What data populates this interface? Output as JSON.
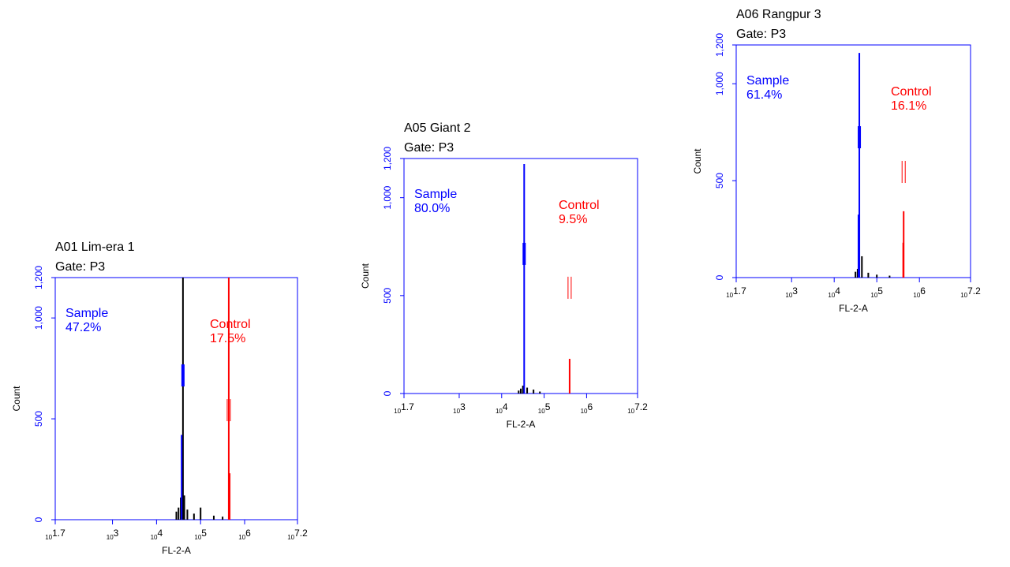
{
  "chart_data": [
    {
      "type": "histogram",
      "title": "A01 Lim-era 1",
      "subtitle": "Gate: P3",
      "xlabel": "FL-2-A",
      "ylabel": "Count",
      "xscale": "log",
      "tick_base": "10",
      "xlim": [
        1.7,
        7.2
      ],
      "xticks": [
        1.7,
        3,
        4,
        5,
        6,
        7.2
      ],
      "ylim": [
        0,
        1200
      ],
      "yticks": [
        0,
        500,
        {
          "value": 1000,
          "label": "1,000"
        },
        {
          "value": 1200,
          "label": "1,200"
        }
      ],
      "axis_color": "#0000ff",
      "series": [
        {
          "color": "#000000",
          "x": [
            4.45,
            4.5,
            4.55,
            4.6,
            4.63,
            4.7,
            4.85,
            5.0,
            5.3,
            5.5
          ],
          "values": [
            40,
            60,
            110,
            1200,
            120,
            50,
            30,
            60,
            20,
            15
          ]
        },
        {
          "color": "#0000ff",
          "x": [
            4.57
          ],
          "values": [
            420
          ]
        },
        {
          "color": "#ff0000",
          "x": [
            5.64,
            5.66
          ],
          "values": [
            1200,
            230
          ]
        }
      ],
      "gate_markers": [
        {
          "color": "#0000ff",
          "x": 4.6,
          "y": 715
        },
        {
          "color": "#ff0000",
          "x": 5.64,
          "y": 543
        }
      ],
      "annotations": [
        {
          "text": "Sample",
          "value": 47.2,
          "value_label": "47.2%",
          "color": "#0000ff"
        },
        {
          "text": "Control",
          "value": 17.5,
          "value_label": "17.5%",
          "color": "#ff0000"
        }
      ]
    },
    {
      "type": "histogram",
      "title": "A05 Giant 2",
      "subtitle": "Gate: P3",
      "xlabel": "FL-2-A",
      "ylabel": "Count",
      "xscale": "log",
      "tick_base": "10",
      "xlim": [
        1.7,
        7.2
      ],
      "xticks": [
        1.7,
        3,
        4,
        5,
        6,
        7.2
      ],
      "ylim": [
        0,
        1200
      ],
      "yticks": [
        0,
        500,
        {
          "value": 1000,
          "label": "1,000"
        },
        {
          "value": 1200,
          "label": "1,200"
        }
      ],
      "axis_color": "#0000ff",
      "series": [
        {
          "color": "#000000",
          "x": [
            4.4,
            4.45,
            4.5,
            4.6,
            4.75,
            4.9
          ],
          "values": [
            15,
            25,
            40,
            30,
            20,
            10
          ]
        },
        {
          "color": "#0000ff",
          "x": [
            4.53
          ],
          "values": [
            1172
          ]
        },
        {
          "color": "#ff0000",
          "x": [
            5.6
          ],
          "values": [
            177
          ]
        }
      ],
      "gate_markers": [
        {
          "color": "#0000ff",
          "x": 4.53,
          "y": 713
        },
        {
          "color": "#ff0000",
          "x": 5.6,
          "y": 540
        }
      ],
      "annotations": [
        {
          "text": "Sample",
          "value": 80.0,
          "value_label": "80.0%",
          "color": "#0000ff"
        },
        {
          "text": "Control",
          "value": 9.5,
          "value_label": "9.5%",
          "color": "#ff0000"
        }
      ]
    },
    {
      "type": "histogram",
      "title": "A06 Rangpur 3",
      "subtitle": "Gate: P3",
      "xlabel": "FL-2-A",
      "ylabel": "Count",
      "xscale": "log",
      "tick_base": "10",
      "xlim": [
        1.7,
        7.2
      ],
      "xticks": [
        1.7,
        3,
        4,
        5,
        6,
        7.2
      ],
      "ylim": [
        0,
        1200
      ],
      "yticks": [
        0,
        500,
        {
          "value": 1000,
          "label": "1,000"
        },
        {
          "value": 1200,
          "label": "1,200"
        }
      ],
      "axis_color": "#0000ff",
      "series": [
        {
          "color": "#000000",
          "x": [
            4.5,
            4.55,
            4.65,
            4.8,
            5.0,
            5.3
          ],
          "values": [
            30,
            45,
            110,
            25,
            15,
            10
          ]
        },
        {
          "color": "#0000ff",
          "x": [
            4.57,
            4.59
          ],
          "values": [
            325,
            1159
          ]
        },
        {
          "color": "#ff0000",
          "x": [
            5.62,
            5.63
          ],
          "values": [
            180,
            342
          ]
        }
      ],
      "gate_markers": [
        {
          "color": "#0000ff",
          "x": 4.59,
          "y": 724
        },
        {
          "color": "#ff0000",
          "x": 5.63,
          "y": 545
        }
      ],
      "annotations": [
        {
          "text": "Sample",
          "value": 61.4,
          "value_label": "61.4%",
          "color": "#0000ff"
        },
        {
          "text": "Control",
          "value": 16.1,
          "value_label": "16.1%",
          "color": "#ff0000"
        }
      ]
    }
  ]
}
